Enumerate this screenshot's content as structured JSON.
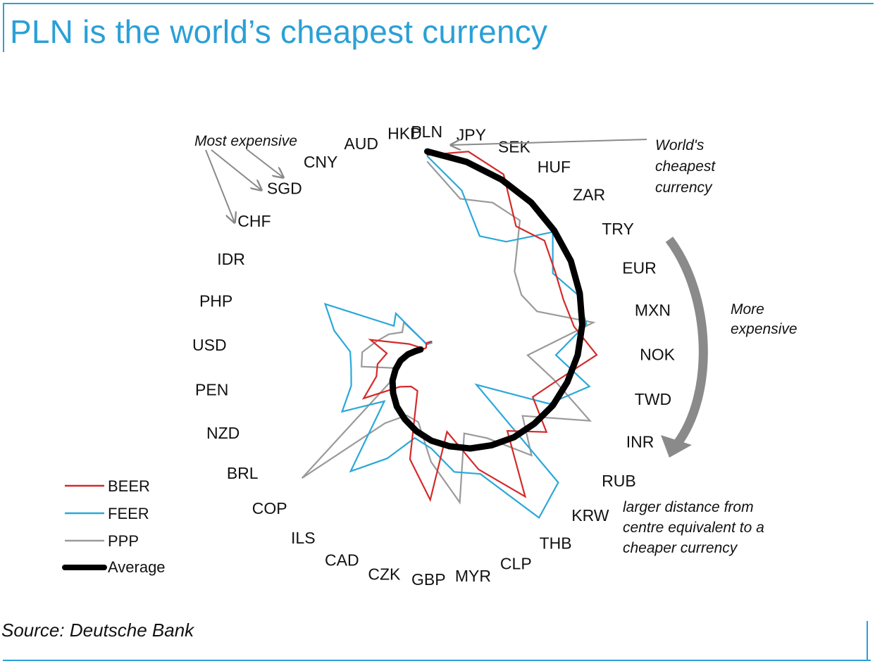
{
  "title": "PLN is the world’s cheapest currency",
  "source": "Source: Deutsche Bank",
  "colors": {
    "accent": "#2aa0d6",
    "beer": "#d42a2a",
    "feer": "#2aa8d9",
    "ppp": "#9a9a9a",
    "average": "#000000",
    "arrow": "#8a8a8a"
  },
  "chart_data": {
    "type": "radar",
    "title": "PLN is the world’s cheapest currency",
    "note": "larger distance from centre equivalent to a cheaper currency",
    "categories": [
      "PLN",
      "JPY",
      "SEK",
      "HUF",
      "ZAR",
      "TRY",
      "EUR",
      "MXN",
      "NOK",
      "TWD",
      "INR",
      "RUB",
      "KRW",
      "THB",
      "CLP",
      "MYR",
      "GBP",
      "CZK",
      "CAD",
      "ILS",
      "COP",
      "BRL",
      "NZD",
      "PEN",
      "USD",
      "PHP",
      "IDR",
      "CHF",
      "SGD",
      "CNY",
      "AUD",
      "HKD"
    ],
    "series": [
      {
        "name": "BEER",
        "values": [
          285,
          294,
          276,
          218,
          227,
          210,
          201,
          204,
          232,
          180,
          153,
          194,
          150,
          239,
          174,
          110,
          205,
          151,
          55,
          54,
          65,
          116,
          86,
          80,
          66,
          92,
          38,
          16,
          15,
          20,
          20,
          20
        ]
      },
      {
        "name": "FEER",
        "values": [
          283,
          238,
          182,
          192,
          244,
          206,
          222,
          222,
          174,
          226,
          178,
          74,
          253,
          275,
          181,
          168,
          132,
          120,
          160,
          202,
          95,
          152,
          124,
          118,
          118,
          145,
          170,
          70,
          80,
          18,
          18,
          18
        ]
      },
      {
        "name": "PPP",
        "values": [
          275,
          226,
          233,
          228,
          166,
          152,
          160,
          232,
          134,
          174,
          241,
          153,
          199,
          140,
          119,
          212,
          151,
          97,
          93,
          118,
          255,
          72,
          52,
          103,
          101,
          83,
          70,
          55,
          63,
          20,
          20,
          20
        ]
      },
      {
        "name": "Average",
        "values": [
          290,
          279,
          268,
          258,
          247,
          237,
          226,
          216,
          205,
          194,
          184,
          173,
          163,
          152,
          142,
          131,
          121,
          110,
          99,
          89,
          78,
          68,
          57,
          47,
          36,
          26,
          20,
          20,
          20,
          20,
          20,
          20
        ]
      }
    ],
    "legend": [
      "BEER",
      "FEER",
      "PPP",
      "Average"
    ],
    "legend_position": "bottom-left",
    "annotations": {
      "most_expensive": "Most expensive",
      "cheapest": [
        "World's",
        "cheapest",
        "currency"
      ],
      "more_expensive": [
        "More",
        "expensive"
      ],
      "distance": [
        "larger distance  from",
        "centre equivalent to a",
        "cheaper currency"
      ]
    }
  }
}
